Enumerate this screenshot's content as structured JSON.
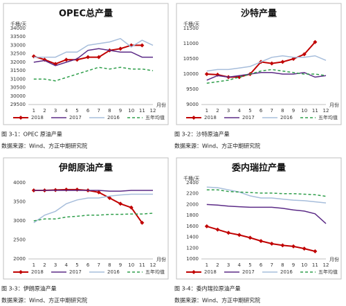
{
  "chart_data": [
    {
      "type": "line",
      "title": "OPEC总产量",
      "y_label": "千桶/天",
      "x_label": "月份",
      "caption": "图 3-1：OPEC 原油产量",
      "source": "数据来源：Wind、方正中期研究院",
      "categories": [
        "1",
        "2",
        "3",
        "4",
        "5",
        "6",
        "7",
        "8",
        "9",
        "10",
        "11",
        "12"
      ],
      "ylim": [
        29500,
        34000
      ],
      "yticks": [
        29500,
        30000,
        30500,
        31000,
        31500,
        32000,
        32500,
        33000,
        33500,
        34000
      ],
      "grid": false,
      "legend": "bottom",
      "series": [
        {
          "name": "2018",
          "color": "#c00000",
          "marker": "diamond",
          "values": [
            32350,
            32150,
            31900,
            32150,
            32150,
            32300,
            32300,
            32700,
            32800,
            33000,
            33000,
            null
          ]
        },
        {
          "name": "2017",
          "color": "#5b2a86",
          "values": [
            32000,
            32100,
            31800,
            32000,
            32200,
            32700,
            32800,
            32700,
            32600,
            32600,
            32300,
            32300
          ]
        },
        {
          "name": "2016",
          "color": "#a6bddb",
          "values": [
            32300,
            32300,
            32300,
            32600,
            32600,
            33000,
            33100,
            33200,
            33400,
            32900,
            33300,
            33000
          ]
        },
        {
          "name": "五年均值",
          "color": "#2e9e4a",
          "dash": true,
          "values": [
            31000,
            31000,
            30900,
            31100,
            31300,
            31500,
            31700,
            31600,
            31700,
            31600,
            31600,
            31500
          ]
        }
      ]
    },
    {
      "type": "line",
      "title": "沙特产量",
      "y_label": "千桶/天",
      "x_label": "月份",
      "caption": "图 3-2：沙特原油产量",
      "source": "数据来源：Wind、方正中期研究院",
      "categories": [
        "1",
        "2",
        "3",
        "4",
        "5",
        "6",
        "7",
        "8",
        "9",
        "10",
        "11",
        "12"
      ],
      "ylim": [
        9000,
        11500
      ],
      "yticks": [
        9000,
        9500,
        10000,
        10500,
        11000,
        11500
      ],
      "grid": false,
      "legend": "bottom",
      "series": [
        {
          "name": "2018",
          "color": "#c00000",
          "marker": "diamond",
          "values": [
            10000,
            9980,
            9900,
            9900,
            10000,
            10400,
            10350,
            10400,
            10500,
            10650,
            11050,
            null
          ]
        },
        {
          "name": "2017",
          "color": "#5b2a86",
          "values": [
            9800,
            9950,
            9900,
            9950,
            10000,
            10050,
            10050,
            10000,
            10000,
            10050,
            9900,
            9950
          ]
        },
        {
          "name": "2016",
          "color": "#a6bddb",
          "values": [
            10100,
            10150,
            10150,
            10200,
            10250,
            10400,
            10550,
            10600,
            10550,
            10550,
            10600,
            10450
          ]
        },
        {
          "name": "五年均值",
          "color": "#2e9e4a",
          "dash": true,
          "values": [
            9700,
            9750,
            9800,
            9900,
            10000,
            10100,
            10150,
            10100,
            10050,
            10000,
            10000,
            9950
          ]
        }
      ]
    },
    {
      "type": "line",
      "title": "伊朗原油产量",
      "x_label": "月份",
      "caption": "图 3-3：伊朗原油产量",
      "source": "数据来源：Wind、方正中期研究院",
      "categories": [
        "1",
        "2",
        "3",
        "4",
        "5",
        "6",
        "7",
        "8",
        "9",
        "10",
        "11",
        "12"
      ],
      "ylim": [
        2000,
        4000
      ],
      "yticks": [
        2000,
        2500,
        3000,
        3500,
        4000
      ],
      "grid": false,
      "legend": "bottom",
      "series": [
        {
          "name": "2018",
          "color": "#c00000",
          "marker": "diamond",
          "values": [
            3800,
            3800,
            3810,
            3820,
            3820,
            3800,
            3750,
            3600,
            3450,
            3350,
            2950,
            null
          ]
        },
        {
          "name": "2017",
          "color": "#5b2a86",
          "values": [
            3800,
            3800,
            3800,
            3800,
            3800,
            3800,
            3800,
            3780,
            3780,
            3800,
            3800,
            3800
          ]
        },
        {
          "name": "2016",
          "color": "#a6bddb",
          "values": [
            2950,
            3150,
            3250,
            3450,
            3550,
            3600,
            3600,
            3650,
            3680,
            3700,
            3700,
            3700
          ]
        },
        {
          "name": "五年均值",
          "color": "#2e9e4a",
          "dash": true,
          "values": [
            3000,
            3050,
            3050,
            3100,
            3120,
            3150,
            3150,
            3170,
            3170,
            3180,
            3180,
            3200
          ]
        }
      ]
    },
    {
      "type": "line",
      "title": "委内瑞拉产量",
      "y_label": "千桶/天",
      "x_label": "月份",
      "caption": "图 3-4：委内瑞拉原油产量",
      "source": "数据来源：Wind、方正中期研究院",
      "categories": [
        "1",
        "2",
        "3",
        "4",
        "5",
        "6",
        "7",
        "8",
        "9",
        "10",
        "11",
        "12"
      ],
      "ylim": [
        1000,
        2400
      ],
      "yticks": [
        1000,
        1200,
        1400,
        1600,
        1800,
        2000,
        2200,
        2400
      ],
      "grid": false,
      "legend": "bottom",
      "series": [
        {
          "name": "2018",
          "color": "#c00000",
          "marker": "diamond",
          "values": [
            1600,
            1540,
            1480,
            1440,
            1390,
            1330,
            1280,
            1250,
            1230,
            1190,
            1140,
            null
          ]
        },
        {
          "name": "2017",
          "color": "#5b2a86",
          "values": [
            2000,
            1990,
            1970,
            1960,
            1950,
            1950,
            1950,
            1930,
            1900,
            1880,
            1830,
            1650
          ]
        },
        {
          "name": "2016",
          "color": "#a6bddb",
          "values": [
            2320,
            2310,
            2270,
            2230,
            2160,
            2120,
            2120,
            2100,
            2080,
            2070,
            2050,
            2030
          ]
        },
        {
          "name": "五年均值",
          "color": "#2e9e4a",
          "dash": true,
          "values": [
            2270,
            2270,
            2240,
            2230,
            2220,
            2210,
            2210,
            2200,
            2200,
            2190,
            2180,
            2150
          ]
        }
      ]
    }
  ]
}
